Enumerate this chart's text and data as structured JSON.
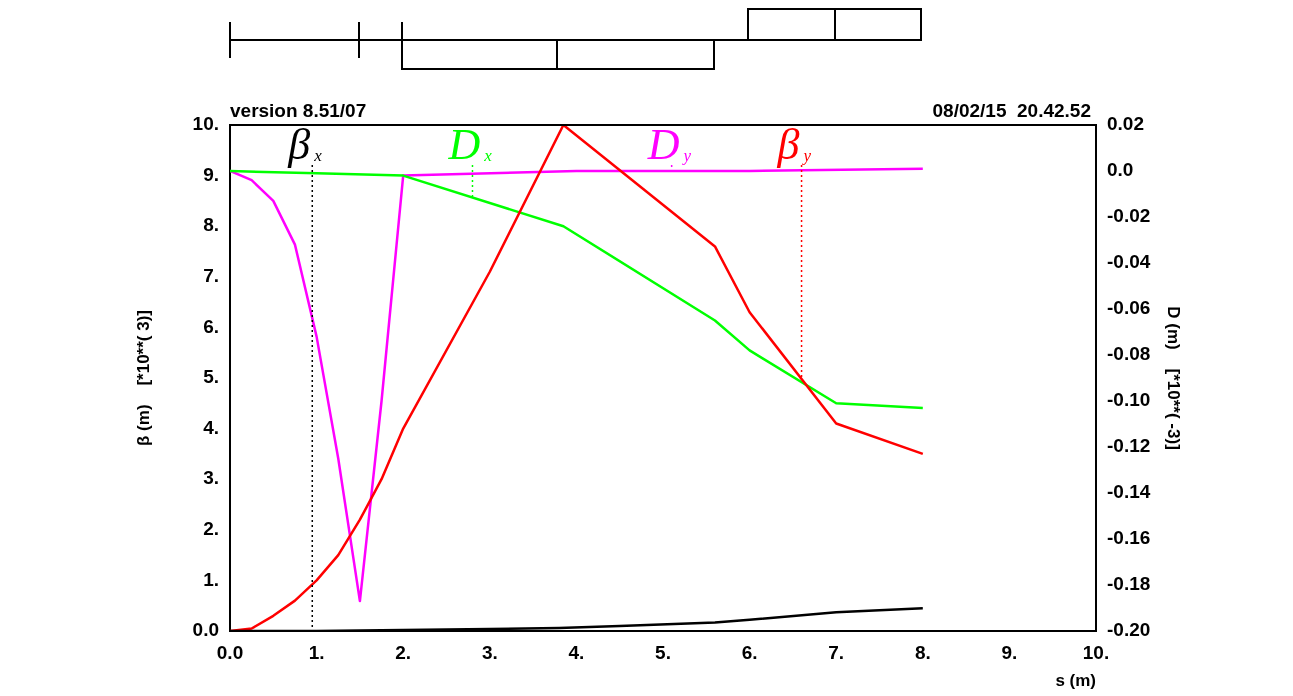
{
  "chart_data": {
    "type": "line",
    "xlabel": "s (m)",
    "ylabel": "β (m)    [*10**( 3)]",
    "y2label": "D (m)    [*10**( -3)]",
    "annotations": [
      "version 8.51/07",
      "08/02/15  20.42.52"
    ],
    "xlim": [
      0,
      10
    ],
    "xticks": [
      {
        "value": 0,
        "label": "0.0"
      },
      {
        "value": 1,
        "label": "1."
      },
      {
        "value": 2,
        "label": "2."
      },
      {
        "value": 3,
        "label": "3."
      },
      {
        "value": 4,
        "label": "4."
      },
      {
        "value": 5,
        "label": "5."
      },
      {
        "value": 6,
        "label": "6."
      },
      {
        "value": 7,
        "label": "7."
      },
      {
        "value": 8,
        "label": "8."
      },
      {
        "value": 9,
        "label": "9."
      },
      {
        "value": 10,
        "label": "10."
      }
    ],
    "ylim": [
      0,
      10
    ],
    "yticks": [
      {
        "value": 0,
        "label": "0.0"
      },
      {
        "value": 1,
        "label": "1."
      },
      {
        "value": 2,
        "label": "2."
      },
      {
        "value": 3,
        "label": "3."
      },
      {
        "value": 4,
        "label": "4."
      },
      {
        "value": 5,
        "label": "5."
      },
      {
        "value": 6,
        "label": "6."
      },
      {
        "value": 7,
        "label": "7."
      },
      {
        "value": 8,
        "label": "8."
      },
      {
        "value": 9,
        "label": "9."
      },
      {
        "value": 10,
        "label": "10."
      }
    ],
    "y2lim": [
      -0.2,
      0.02
    ],
    "y2ticks": [
      0.02,
      {
        "value": 0,
        "label": "0.0"
      },
      -0.02,
      -0.04,
      -0.06,
      -0.08,
      {
        "value": -0.1,
        "label": "-0.10"
      },
      -0.12,
      -0.14,
      -0.16,
      -0.18,
      {
        "value": -0.2,
        "label": "-0.20"
      }
    ],
    "grid": false,
    "legend": "top",
    "marker": "none",
    "line_style": "solid",
    "series": [
      {
        "name": "β$_{x}$",
        "color": "#000000",
        "x": [
          0,
          1,
          2,
          3,
          3.8,
          4.5,
          5.6,
          6,
          7,
          8
        ],
        "values": [
          0,
          0,
          0.02,
          0.04,
          0.06,
          0.1,
          0.17,
          0.22,
          0.37,
          0.45
        ]
      },
      {
        "name": "β$_{y}$",
        "color": "#ff0000",
        "x": [
          0,
          0.25,
          0.5,
          0.75,
          1,
          1.25,
          1.5,
          1.75,
          2,
          3,
          3.85,
          5.6,
          6,
          7,
          8
        ],
        "values": [
          0,
          0.05,
          0.3,
          0.6,
          1,
          1.5,
          2.2,
          3,
          4,
          7.1,
          10,
          7.6,
          6.3,
          4.1,
          3.5
        ]
      },
      {
        "name": "D$_{x}$",
        "color": "#00ff00",
        "axis": "y2",
        "x": [
          0,
          1,
          2,
          3.85,
          5.6,
          6,
          7,
          8
        ],
        "values": [
          0,
          -0.001,
          -0.002,
          -0.024,
          -0.065,
          -0.078,
          -0.101,
          -0.103
        ]
      },
      {
        "name": "D$_{y}$",
        "color": "#ff00ff",
        "axis": "y2",
        "x": [
          0,
          0.25,
          0.5,
          0.75,
          1,
          1.25,
          1.5,
          1.75,
          2,
          4,
          6,
          8
        ],
        "values": [
          0,
          -0.004,
          -0.013,
          -0.032,
          -0.072,
          -0.125,
          -0.187,
          -0.1,
          -0.002,
          0,
          0,
          0.001
        ]
      }
    ]
  }
}
